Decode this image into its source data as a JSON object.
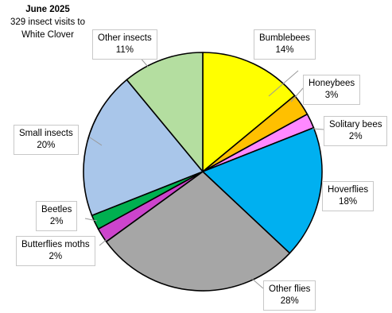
{
  "chart_data": {
    "type": "pie",
    "title": "June 2025",
    "subtitle_lines": [
      "329 insect visits to",
      "White Clover"
    ],
    "slices": [
      {
        "name": "Bumblebees",
        "value": 14,
        "pct_label": "14%",
        "color": "#ffff00"
      },
      {
        "name": "Honeybees",
        "value": 3,
        "pct_label": "3%",
        "color": "#ffc000"
      },
      {
        "name": "Solitary bees",
        "value": 2,
        "pct_label": "2%",
        "color": "#ff88ff"
      },
      {
        "name": "Hoverflies",
        "value": 18,
        "pct_label": "18%",
        "color": "#00b0f0"
      },
      {
        "name": "Other flies",
        "value": 28,
        "pct_label": "28%",
        "color": "#a6a6a6"
      },
      {
        "name": "Butterflies moths",
        "value": 2,
        "pct_label": "2%",
        "color": "#cc44cc"
      },
      {
        "name": "Beetles",
        "value": 2,
        "pct_label": "2%",
        "color": "#00b050"
      },
      {
        "name": "Small insects",
        "value": 20,
        "pct_label": "20%",
        "color": "#a9c6ea"
      },
      {
        "name": "Other insects",
        "value": 11,
        "pct_label": "11%",
        "color": "#b4dea0"
      }
    ]
  }
}
